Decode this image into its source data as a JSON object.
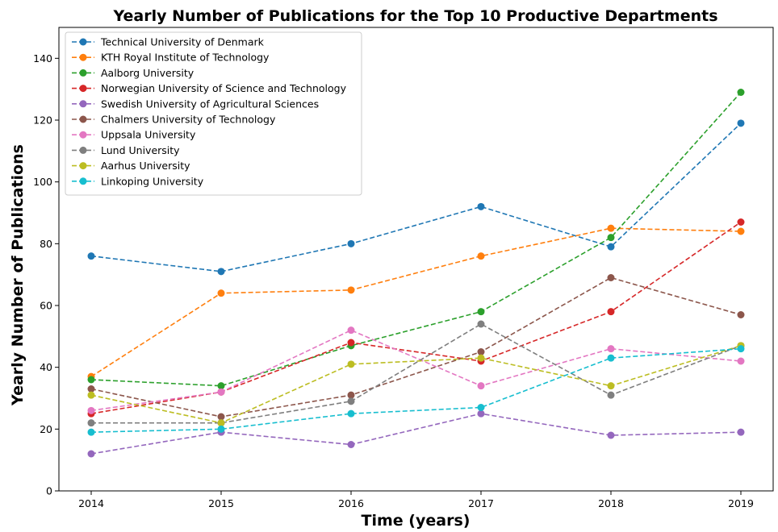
{
  "chart_data": {
    "type": "line",
    "title": "Yearly Number of Publications for the Top 10 Productive Departments",
    "xlabel": "Time (years)",
    "ylabel": "Yearly Number of Publications",
    "x": [
      2014,
      2015,
      2016,
      2017,
      2018,
      2019
    ],
    "xticks": [
      "2014",
      "2015",
      "2016",
      "2017",
      "2018",
      "2019"
    ],
    "ylim": [
      0,
      150
    ],
    "yticks": [
      0,
      20,
      40,
      60,
      80,
      100,
      120,
      140
    ],
    "ytick_labels": [
      "0",
      "20",
      "40",
      "60",
      "80",
      "100",
      "120",
      "140"
    ],
    "grid": false,
    "legend_position": "upper-left",
    "line_style": "dashed",
    "marker": "circle",
    "series": [
      {
        "name": "Technical University of Denmark",
        "color": "#1f77b4",
        "values": [
          76,
          71,
          80,
          92,
          79,
          119
        ]
      },
      {
        "name": "KTH Royal Institute of Technology",
        "color": "#ff7f0e",
        "values": [
          37,
          64,
          65,
          76,
          85,
          84
        ]
      },
      {
        "name": "Aalborg University",
        "color": "#2ca02c",
        "values": [
          36,
          34,
          47,
          58,
          82,
          129
        ]
      },
      {
        "name": "Norwegian University of Science and Technology",
        "color": "#d62728",
        "values": [
          25,
          32,
          48,
          42,
          58,
          87
        ]
      },
      {
        "name": "Swedish University of Agricultural Sciences",
        "color": "#9467bd",
        "values": [
          12,
          19,
          15,
          25,
          18,
          19
        ]
      },
      {
        "name": "Chalmers University of Technology",
        "color": "#8c564b",
        "values": [
          33,
          24,
          31,
          45,
          69,
          57
        ]
      },
      {
        "name": "Uppsala University",
        "color": "#e377c2",
        "values": [
          26,
          32,
          52,
          34,
          46,
          42
        ]
      },
      {
        "name": "Lund University",
        "color": "#7f7f7f",
        "values": [
          22,
          22,
          29,
          54,
          31,
          47
        ]
      },
      {
        "name": "Aarhus University",
        "color": "#bcbd22",
        "values": [
          31,
          22,
          41,
          43,
          34,
          47
        ]
      },
      {
        "name": "Linkoping University",
        "color": "#17becf",
        "values": [
          19,
          20,
          25,
          27,
          43,
          46
        ]
      }
    ]
  }
}
